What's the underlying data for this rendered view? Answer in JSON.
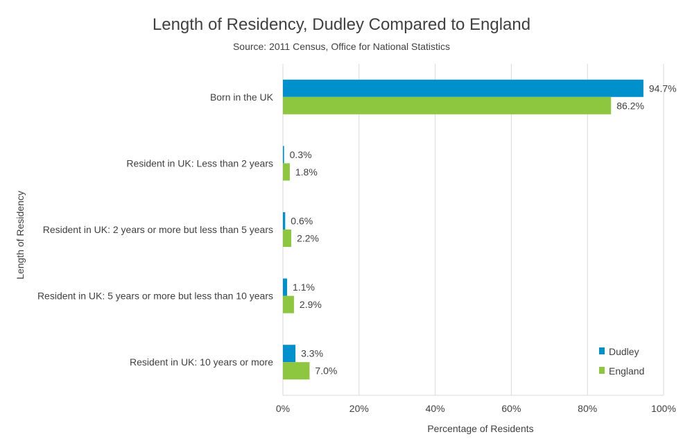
{
  "chart_data": {
    "type": "bar",
    "orientation": "horizontal",
    "title": "Length of Residency, Dudley Compared to England",
    "subtitle": "Source: 2011 Census, Office for National Statistics",
    "xlabel": "Percentage of Residents",
    "ylabel": "Length of Residency",
    "categories": [
      "Born in the UK",
      "Resident in UK: Less than 2 years",
      "Resident in UK: 2 years or more but less than 5 years",
      "Resident in UK: 5 years or more but less than 10 years",
      "Resident in UK: 10 years or more"
    ],
    "series": [
      {
        "name": "Dudley",
        "color": "#0091CC",
        "values": [
          94.7,
          0.3,
          0.6,
          1.1,
          3.3
        ],
        "labels": [
          "94.7%",
          "0.3%",
          "0.6%",
          "1.1%",
          "3.3%"
        ]
      },
      {
        "name": "England",
        "color": "#8DC63F",
        "values": [
          86.2,
          1.8,
          2.2,
          2.9,
          7.0
        ],
        "labels": [
          "86.2%",
          "1.8%",
          "2.2%",
          "2.9%",
          "7.0%"
        ]
      }
    ],
    "xlim": [
      0,
      100
    ],
    "xticks": [
      0,
      20,
      40,
      60,
      80,
      100
    ],
    "xtick_labels": [
      "0%",
      "20%",
      "40%",
      "60%",
      "80%",
      "100%"
    ],
    "grid": true,
    "legend_position": "bottom-right"
  }
}
